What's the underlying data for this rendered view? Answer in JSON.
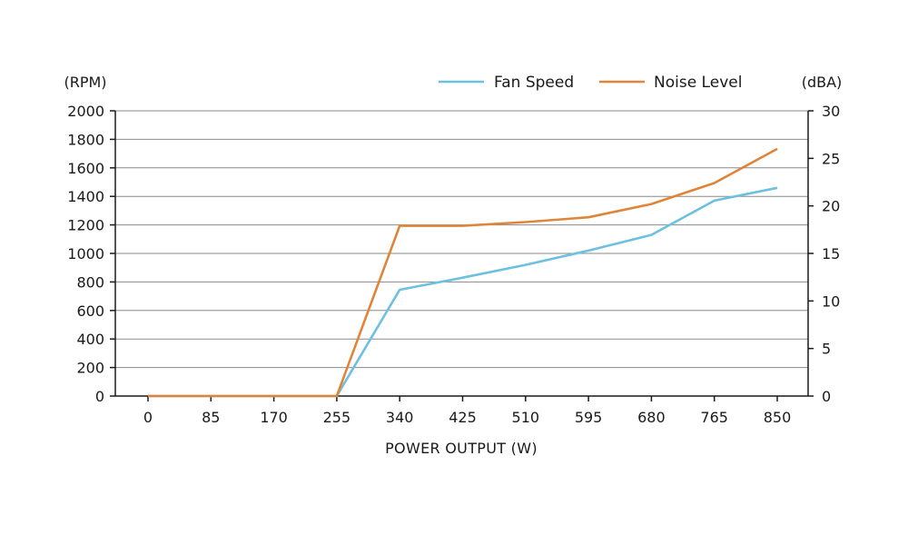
{
  "chart_data": {
    "type": "line",
    "x_categories": [
      "0",
      "85",
      "170",
      "255",
      "340",
      "425",
      "510",
      "595",
      "680",
      "765",
      "850"
    ],
    "xlabel": "POWER OUTPUT (W)",
    "y_left": {
      "unit": "(RPM)",
      "range": [
        0,
        2000
      ],
      "ticks": [
        0,
        200,
        400,
        600,
        800,
        1000,
        1200,
        1400,
        1600,
        1800,
        2000
      ]
    },
    "y_right": {
      "unit": "(dBA)",
      "range": [
        0,
        30
      ],
      "ticks": [
        0,
        5,
        10,
        15,
        20,
        25,
        30
      ]
    },
    "grid": true,
    "legend": "top-right",
    "series": [
      {
        "name": "Fan Speed",
        "axis": "left",
        "color": "#6cc0e0",
        "values": [
          0,
          0,
          0,
          0,
          745,
          830,
          920,
          1020,
          1130,
          1370,
          1460
        ]
      },
      {
        "name": "Noise Level",
        "axis": "right",
        "color": "#e0843a",
        "values": [
          0,
          0,
          0,
          0,
          17.9,
          17.9,
          18.3,
          18.8,
          20.2,
          22.4,
          26.0
        ]
      }
    ]
  }
}
